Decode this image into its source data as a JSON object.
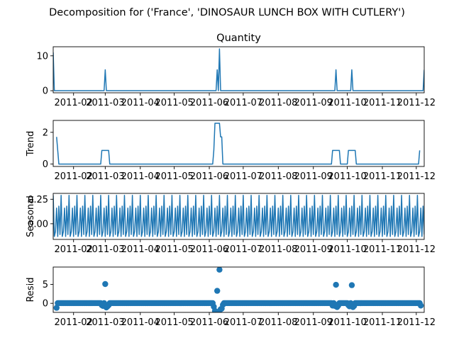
{
  "figure": {
    "suptitle": "Decomposition for ('France', 'DINOSAUR LUNCH BOX WITH CUTLERY')"
  },
  "chart_data": [
    {
      "type": "line",
      "title": "Quantity",
      "xlabel": "",
      "ylabel": "",
      "color": "#1f77b4",
      "xlim": [
        "2011-01-14",
        "2011-12-08"
      ],
      "ylim": [
        -0.6,
        12.6
      ],
      "yticks": [
        0,
        10
      ],
      "xticks": [
        "2011-02",
        "2011-03",
        "2011-04",
        "2011-05",
        "2011-06",
        "2011-07",
        "2011-08",
        "2011-09",
        "2011-10",
        "2011-11",
        "2011-12"
      ],
      "points": [
        [
          "2011-01-14",
          11
        ],
        [
          "2011-01-15",
          0
        ],
        [
          "2011-02-28",
          0
        ],
        [
          "2011-03-01",
          6
        ],
        [
          "2011-03-02",
          0
        ],
        [
          "2011-06-07",
          0
        ],
        [
          "2011-06-08",
          6
        ],
        [
          "2011-06-09",
          0
        ],
        [
          "2011-06-10",
          12
        ],
        [
          "2011-06-11",
          0
        ],
        [
          "2011-09-20",
          0
        ],
        [
          "2011-09-21",
          6
        ],
        [
          "2011-09-22",
          0
        ],
        [
          "2011-10-04",
          0
        ],
        [
          "2011-10-05",
          6
        ],
        [
          "2011-10-06",
          0
        ],
        [
          "2011-12-07",
          0
        ],
        [
          "2011-12-08",
          6
        ]
      ]
    },
    {
      "type": "line",
      "title": "",
      "xlabel": "",
      "ylabel": "Trend",
      "color": "#1f77b4",
      "xlim": [
        "2011-01-14",
        "2011-12-08"
      ],
      "ylim": [
        -0.15,
        2.75
      ],
      "yticks": [
        0,
        2
      ],
      "xticks": [
        "2011-02",
        "2011-03",
        "2011-04",
        "2011-05",
        "2011-06",
        "2011-07",
        "2011-08",
        "2011-09",
        "2011-10",
        "2011-11",
        "2011-12"
      ],
      "points": [
        [
          "2011-01-17",
          1.71
        ],
        [
          "2011-01-18",
          0.86
        ],
        [
          "2011-01-19",
          0
        ],
        [
          "2011-02-25",
          0
        ],
        [
          "2011-02-26",
          0.86
        ],
        [
          "2011-03-04",
          0.86
        ],
        [
          "2011-03-05",
          0
        ],
        [
          "2011-06-04",
          0
        ],
        [
          "2011-06-05",
          0.86
        ],
        [
          "2011-06-06",
          2.57
        ],
        [
          "2011-06-10",
          2.57
        ],
        [
          "2011-06-11",
          1.71
        ],
        [
          "2011-06-12",
          1.71
        ],
        [
          "2011-06-13",
          0
        ],
        [
          "2011-09-17",
          0
        ],
        [
          "2011-09-18",
          0.86
        ],
        [
          "2011-09-24",
          0.86
        ],
        [
          "2011-09-25",
          0
        ],
        [
          "2011-10-01",
          0
        ],
        [
          "2011-10-02",
          0.86
        ],
        [
          "2011-10-08",
          0.86
        ],
        [
          "2011-10-09",
          0
        ],
        [
          "2011-12-03",
          0
        ],
        [
          "2011-12-04",
          0.86
        ]
      ]
    },
    {
      "type": "line",
      "title": "",
      "xlabel": "",
      "ylabel": "Seasonal",
      "color": "#1f77b4",
      "xlim": [
        "2011-01-14",
        "2011-12-08"
      ],
      "ylim": [
        -0.16,
        0.31
      ],
      "yticks": [
        0.25,
        -0.0
      ],
      "ytick_labels": [
        "0.25",
        "0.00"
      ],
      "xticks": [
        "2011-02",
        "2011-03",
        "2011-04",
        "2011-05",
        "2011-06",
        "2011-07",
        "2011-08",
        "2011-09",
        "2011-10",
        "2011-11",
        "2011-12"
      ],
      "period": 7,
      "weekly_pattern": [
        0.29,
        -0.13,
        -0.08,
        0.16,
        -0.13,
        0.18,
        -0.11
      ]
    },
    {
      "type": "scatter",
      "title": "",
      "xlabel": "",
      "ylabel": "Resid",
      "color": "#1f77b4",
      "xlim": [
        "2011-01-14",
        "2011-12-08"
      ],
      "ylim": [
        -2.4,
        9.6
      ],
      "yticks": [
        0,
        5
      ],
      "xticks": [
        "2011-02",
        "2011-03",
        "2011-04",
        "2011-05",
        "2011-06",
        "2011-07",
        "2011-08",
        "2011-09",
        "2011-10",
        "2011-11",
        "2011-12"
      ],
      "baseline_range": [
        "2011-01-17",
        "2011-12-05"
      ],
      "baseline_value": 0.05,
      "outliers": [
        [
          "2011-01-17",
          -1.2
        ],
        [
          "2011-02-26",
          -0.5
        ],
        [
          "2011-02-27",
          -0.7
        ],
        [
          "2011-03-01",
          5.1
        ],
        [
          "2011-03-02",
          -1.1
        ],
        [
          "2011-03-03",
          -0.8
        ],
        [
          "2011-03-04",
          -0.5
        ],
        [
          "2011-06-05",
          -0.9
        ],
        [
          "2011-06-06",
          -2.0
        ],
        [
          "2011-06-07",
          -2.2
        ],
        [
          "2011-06-08",
          3.3
        ],
        [
          "2011-06-09",
          -2.3
        ],
        [
          "2011-06-10",
          8.9
        ],
        [
          "2011-06-11",
          -1.6
        ],
        [
          "2011-06-12",
          -1.4
        ],
        [
          "2011-06-13",
          -0.4
        ],
        [
          "2011-09-18",
          -0.6
        ],
        [
          "2011-09-20",
          -0.7
        ],
        [
          "2011-09-21",
          4.9
        ],
        [
          "2011-09-22",
          -1.0
        ],
        [
          "2011-09-23",
          -0.6
        ],
        [
          "2011-10-02",
          -0.5
        ],
        [
          "2011-10-03",
          -0.8
        ],
        [
          "2011-10-05",
          4.8
        ],
        [
          "2011-10-06",
          -1.0
        ],
        [
          "2011-10-07",
          -0.7
        ],
        [
          "2011-12-05",
          -0.6
        ]
      ]
    }
  ]
}
